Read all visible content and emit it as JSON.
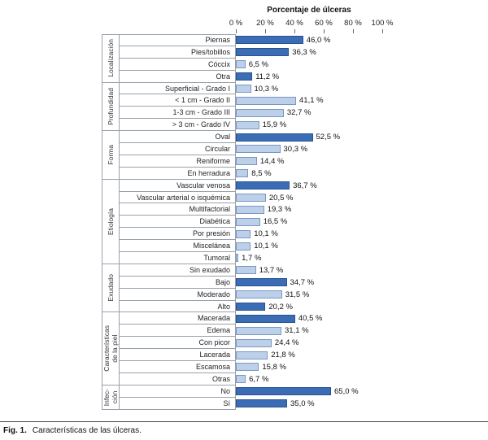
{
  "title": "Porcentaje de úlceras",
  "axis": {
    "ticks": [
      "0 %",
      "20 %",
      "40 %",
      "60 %",
      "80 %",
      "100 %"
    ],
    "min": 0,
    "max": 100
  },
  "colors": {
    "dark": "#3a6db5",
    "dark_border": "#2c528c",
    "light": "#bdd0e9",
    "light_border": "#7b97c2",
    "table_line": "#9aa0aa"
  },
  "chart_data": {
    "type": "bar",
    "orientation": "horizontal",
    "title": "Porcentaje de úlceras",
    "xlabel": "Porcentaje de úlceras",
    "xlim": [
      0,
      100
    ],
    "grid": false,
    "groups": [
      {
        "name": "Localización",
        "items": [
          {
            "label": "Piernas",
            "value": 46.0,
            "display": "46,0 %",
            "tone": "dark"
          },
          {
            "label": "Pies/tobillos",
            "value": 36.3,
            "display": "36,3 %",
            "tone": "dark"
          },
          {
            "label": "Cóccix",
            "value": 6.5,
            "display": "6,5 %",
            "tone": "light"
          },
          {
            "label": "Otra",
            "value": 11.2,
            "display": "11,2 %",
            "tone": "dark"
          }
        ]
      },
      {
        "name": "Profundidad",
        "items": [
          {
            "label": "Superficial - Grado I",
            "value": 10.3,
            "display": "10,3 %",
            "tone": "light"
          },
          {
            "label": "< 1 cm - Grado II",
            "value": 41.1,
            "display": "41,1 %",
            "tone": "light"
          },
          {
            "label": "1-3 cm - Grado III",
            "value": 32.7,
            "display": "32,7 %",
            "tone": "light"
          },
          {
            "label": "> 3 cm - Grado IV",
            "value": 15.9,
            "display": "15,9 %",
            "tone": "light"
          }
        ]
      },
      {
        "name": "Forma",
        "items": [
          {
            "label": "Oval",
            "value": 52.5,
            "display": "52,5 %",
            "tone": "dark"
          },
          {
            "label": "Circular",
            "value": 30.3,
            "display": "30,3 %",
            "tone": "light"
          },
          {
            "label": "Reniforme",
            "value": 14.4,
            "display": "14,4 %",
            "tone": "light"
          },
          {
            "label": "En herradura",
            "value": 8.5,
            "display": "8,5 %",
            "tone": "light"
          }
        ]
      },
      {
        "name": "Etiología",
        "items": [
          {
            "label": "Vascular venosa",
            "value": 36.7,
            "display": "36,7 %",
            "tone": "dark"
          },
          {
            "label": "Vascular arterial o isquémica",
            "value": 20.5,
            "display": "20,5 %",
            "tone": "light"
          },
          {
            "label": "Multifactorial",
            "value": 19.3,
            "display": "19,3 %",
            "tone": "light"
          },
          {
            "label": "Diabética",
            "value": 16.5,
            "display": "16,5 %",
            "tone": "light"
          },
          {
            "label": "Por presión",
            "value": 10.1,
            "display": "10,1 %",
            "tone": "light"
          },
          {
            "label": "Miscelánea",
            "value": 10.1,
            "display": "10,1 %",
            "tone": "light"
          },
          {
            "label": "Tumoral",
            "value": 1.7,
            "display": "1,7 %",
            "tone": "light"
          }
        ]
      },
      {
        "name": "Exudado",
        "items": [
          {
            "label": "Sin exudado",
            "value": 13.7,
            "display": "13,7 %",
            "tone": "light"
          },
          {
            "label": "Bajo",
            "value": 34.7,
            "display": "34,7 %",
            "tone": "dark"
          },
          {
            "label": "Moderado",
            "value": 31.5,
            "display": "31,5 %",
            "tone": "light"
          },
          {
            "label": "Alto",
            "value": 20.2,
            "display": "20,2 %",
            "tone": "dark"
          }
        ]
      },
      {
        "name": "Características\nde la piel",
        "items": [
          {
            "label": "Macerada",
            "value": 40.5,
            "display": "40,5 %",
            "tone": "dark"
          },
          {
            "label": "Edema",
            "value": 31.1,
            "display": "31,1 %",
            "tone": "light"
          },
          {
            "label": "Con picor",
            "value": 24.4,
            "display": "24,4 %",
            "tone": "light"
          },
          {
            "label": "Lacerada",
            "value": 21.8,
            "display": "21,8 %",
            "tone": "light"
          },
          {
            "label": "Escamosa",
            "value": 15.8,
            "display": "15,8 %",
            "tone": "light"
          },
          {
            "label": "Otras",
            "value": 6.7,
            "display": "6,7 %",
            "tone": "light"
          }
        ]
      },
      {
        "name": "Infec-\nción",
        "items": [
          {
            "label": "No",
            "value": 65.0,
            "display": "65,0 %",
            "tone": "dark"
          },
          {
            "label": "Sí",
            "value": 35.0,
            "display": "35,0 %",
            "tone": "dark"
          }
        ]
      }
    ]
  },
  "caption": {
    "prefix": "Fig. 1.",
    "text": "Características de las úlceras."
  }
}
